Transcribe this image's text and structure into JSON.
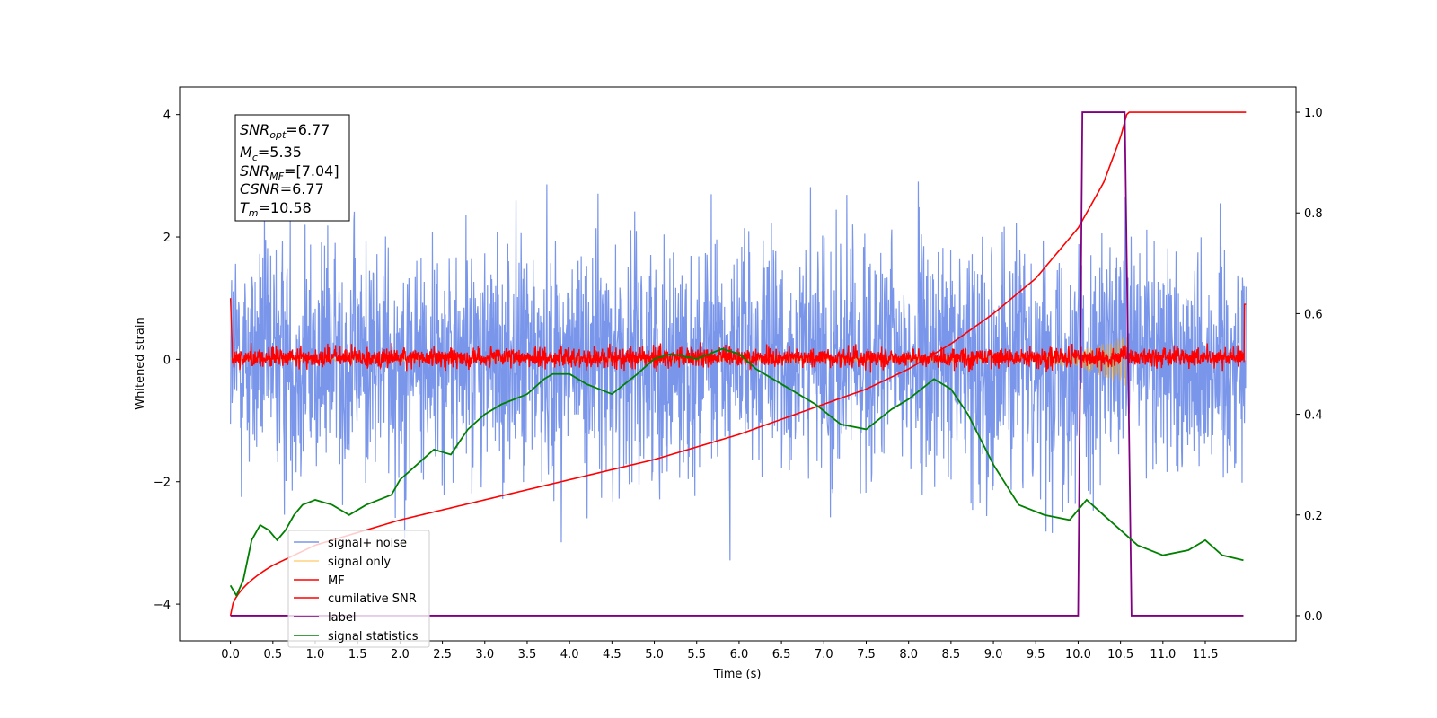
{
  "chart_data": {
    "type": "line",
    "title": "",
    "xlabel": "Time (s)",
    "ylabel": "Whitened strain",
    "xlim": [
      -0.6,
      12.57
    ],
    "ylim": [
      -4.6,
      4.45
    ],
    "y2lim": [
      -0.05,
      1.05
    ],
    "xticks": [
      "0.0",
      "0.5",
      "1.0",
      "1.5",
      "2.0",
      "2.5",
      "3.0",
      "3.5",
      "4.0",
      "4.5",
      "5.0",
      "5.5",
      "6.0",
      "6.5",
      "7.0",
      "7.5",
      "8.0",
      "8.5",
      "9.0",
      "9.5",
      "10.0",
      "10.5",
      "11.0",
      "11.5"
    ],
    "yticks": [
      "4",
      "2",
      "0",
      "−2",
      "−4"
    ],
    "y2ticks": [
      "1.0",
      "0.8",
      "0.6",
      "0.4",
      "0.2",
      "0.0"
    ],
    "grid": false,
    "legend_position": "lower-left",
    "annotation": {
      "snr_opt": {
        "base": "SNR",
        "sub": "opt",
        "value": "=6.77"
      },
      "mc": {
        "base": "M",
        "sub": "c",
        "value": "=5.35"
      },
      "snr_mf": {
        "base": "SNR",
        "sub": "MF",
        "value": "=[7.04]"
      },
      "csnr": {
        "base": "CSNR",
        "value": "=6.77"
      },
      "tm": {
        "base": "T",
        "sub": "m",
        "value": "=10.58"
      }
    },
    "series": [
      {
        "name": "signal+ noise",
        "color": "#4169e1",
        "axis": "left",
        "amplitude": 1.3,
        "range": [
          -4.05,
          4.0
        ]
      },
      {
        "name": "signal only",
        "color": "#ffa500",
        "axis": "left",
        "x": [
          0.0,
          9.0,
          10.0,
          10.58,
          10.6
        ],
        "envelope": [
          0.02,
          0.04,
          0.12,
          0.45,
          0.0
        ]
      },
      {
        "name": "MF",
        "color": "#ff0000",
        "axis": "left",
        "amplitude": 0.12,
        "range": [
          -0.25,
          1.0
        ]
      },
      {
        "name": "cumilative SNR",
        "color": "#ff0000",
        "axis": "right",
        "x": [
          0.0,
          0.5,
          1.0,
          2.0,
          3.0,
          4.0,
          5.0,
          6.0,
          7.0,
          7.5,
          8.0,
          8.5,
          9.0,
          9.5,
          10.0,
          10.3,
          10.5,
          10.58,
          11.98
        ],
        "y": [
          0.0,
          0.1,
          0.14,
          0.19,
          0.23,
          0.27,
          0.31,
          0.36,
          0.42,
          0.45,
          0.49,
          0.54,
          0.6,
          0.67,
          0.77,
          0.86,
          0.95,
          1.0,
          1.0
        ]
      },
      {
        "name": "label",
        "color": "#800080",
        "axis": "right",
        "x": [
          0.0,
          10.0,
          10.05,
          10.55,
          10.63,
          11.95
        ],
        "y": [
          0.0,
          0.0,
          1.0,
          1.0,
          0.0,
          0.0
        ]
      },
      {
        "name": "signal statistics",
        "color": "#008000",
        "axis": "right",
        "x": [
          0.0,
          0.07,
          0.15,
          0.25,
          0.35,
          0.45,
          0.55,
          0.65,
          0.75,
          0.85,
          1.0,
          1.2,
          1.4,
          1.6,
          1.75,
          1.9,
          2.0,
          2.2,
          2.4,
          2.6,
          2.8,
          3.0,
          3.2,
          3.5,
          3.7,
          3.8,
          4.0,
          4.2,
          4.5,
          4.8,
          5.0,
          5.2,
          5.5,
          5.8,
          6.0,
          6.2,
          6.5,
          6.7,
          6.9,
          7.2,
          7.5,
          7.8,
          8.0,
          8.3,
          8.5,
          8.7,
          9.0,
          9.3,
          9.6,
          9.9,
          10.1,
          10.3,
          10.5,
          10.7,
          11.0,
          11.3,
          11.5,
          11.7,
          11.95
        ],
        "y": [
          0.06,
          0.04,
          0.07,
          0.15,
          0.18,
          0.17,
          0.15,
          0.17,
          0.2,
          0.22,
          0.23,
          0.22,
          0.2,
          0.22,
          0.23,
          0.24,
          0.27,
          0.3,
          0.33,
          0.32,
          0.37,
          0.4,
          0.42,
          0.44,
          0.47,
          0.48,
          0.48,
          0.46,
          0.44,
          0.48,
          0.51,
          0.52,
          0.51,
          0.53,
          0.52,
          0.49,
          0.46,
          0.44,
          0.42,
          0.38,
          0.37,
          0.41,
          0.43,
          0.47,
          0.45,
          0.4,
          0.3,
          0.22,
          0.2,
          0.19,
          0.23,
          0.2,
          0.17,
          0.14,
          0.12,
          0.13,
          0.15,
          0.12,
          0.11
        ]
      }
    ]
  }
}
